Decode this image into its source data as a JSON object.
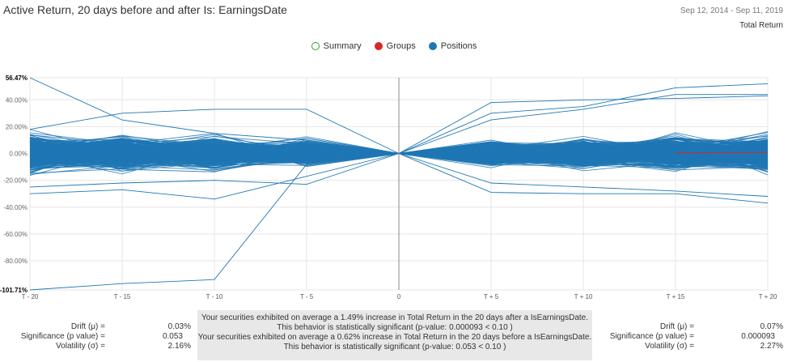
{
  "header": {
    "title": "Active Return, 20 days before and after Is: EarningsDate",
    "date_range": "Sep 12, 2014 - Sep 11, 2019",
    "metric": "Total Return"
  },
  "legend": [
    {
      "label": "Summary",
      "color": "#2ca02c",
      "style": "hollow"
    },
    {
      "label": "Groups",
      "color": "#d62728",
      "style": "filled"
    },
    {
      "label": "Positions",
      "color": "#1f77b4",
      "style": "filled"
    }
  ],
  "chart_data": {
    "type": "line",
    "title": "Active Return, 20 days before and after Is: EarningsDate",
    "xlabel": "",
    "ylabel": "",
    "x_ticks": [
      "T - 20",
      "T - 15",
      "T - 10",
      "T - 5",
      "0",
      "T + 5",
      "T + 10",
      "T + 15",
      "T + 20"
    ],
    "y_ticks": [
      "56.47%",
      "40.00%",
      "20.00%",
      "0.00%",
      "-20.00%",
      "-40.00%",
      "-60.00%",
      "-80.00%",
      "-101.71%"
    ],
    "ylim": [
      -101.71,
      56.47
    ],
    "grid": true,
    "legend_position": "top-center",
    "series_color": "#1f77b4",
    "group_color": "#d62728",
    "highlighted_series": [
      {
        "x": [
          -20,
          -15,
          -10,
          -5,
          0
        ],
        "y": [
          -101.71,
          -97,
          -94,
          -8,
          0
        ]
      },
      {
        "x": [
          -20,
          -15,
          -10,
          -5,
          0
        ],
        "y": [
          56.47,
          25,
          15,
          10,
          0
        ]
      },
      {
        "x": [
          -20,
          -15,
          -10,
          -5,
          0
        ],
        "y": [
          18,
          30,
          33,
          33,
          0
        ]
      },
      {
        "x": [
          -20,
          -15,
          -10,
          -5,
          0
        ],
        "y": [
          -30,
          -27,
          -34,
          -17,
          0
        ]
      },
      {
        "x": [
          -20,
          -15,
          -10,
          -5,
          0
        ],
        "y": [
          -25,
          -22,
          -20,
          -23,
          0
        ]
      },
      {
        "x": [
          0,
          5,
          10,
          15,
          20
        ],
        "y": [
          0,
          38,
          40,
          41,
          43
        ]
      },
      {
        "x": [
          0,
          5,
          10,
          15,
          20
        ],
        "y": [
          0,
          30,
          35,
          49,
          52
        ]
      },
      {
        "x": [
          0,
          5,
          10,
          15,
          20
        ],
        "y": [
          0,
          25,
          33,
          44,
          44
        ]
      },
      {
        "x": [
          0,
          5,
          10,
          15,
          20
        ],
        "y": [
          0,
          -29,
          -30,
          -30,
          -37
        ]
      },
      {
        "x": [
          0,
          5,
          10,
          15,
          20
        ],
        "y": [
          0,
          -22,
          -25,
          -28,
          -32
        ]
      }
    ],
    "bundle_extent": {
      "x": [
        -20,
        -15,
        -10,
        -5,
        0,
        5,
        10,
        15,
        20
      ],
      "y_low": [
        -18,
        -16,
        -15,
        -12,
        0,
        -12,
        -15,
        -16,
        -18
      ],
      "y_high": [
        18,
        16,
        15,
        12,
        0,
        12,
        15,
        16,
        18
      ]
    },
    "group_line": {
      "x": [
        15,
        20
      ],
      "y": [
        0.5,
        0.8
      ]
    }
  },
  "stats_left": {
    "drift_label": "Drift (μ) =",
    "drift_value": "0.03%",
    "significance_label": "Significance (p value) =",
    "significance_value": "0.053",
    "volatility_label": "Volatility (σ) =",
    "volatility_value": "2.16%"
  },
  "stats_right": {
    "drift_label": "Drift (μ) =",
    "drift_value": "0.07%",
    "significance_label": "Significance (p value) =",
    "significance_value": "0.000093",
    "volatility_label": "Volatility (σ) =",
    "volatility_value": "2.27%"
  },
  "summary_box": {
    "line1": "Your securities exhibited on average a 1.49% increase in Total Return in the 20 days after a IsEarningsDate.",
    "line2": "This behavior is statistically significant (p-value: 0.000093 < 0.10 )",
    "line3": "Your securities exhibited on average a 0.62% increase in Total Return in the 20 days before a IsEarningsDate.",
    "line4": "This behavior is statistically significant (p-value: 0.053 < 0.10 )"
  }
}
